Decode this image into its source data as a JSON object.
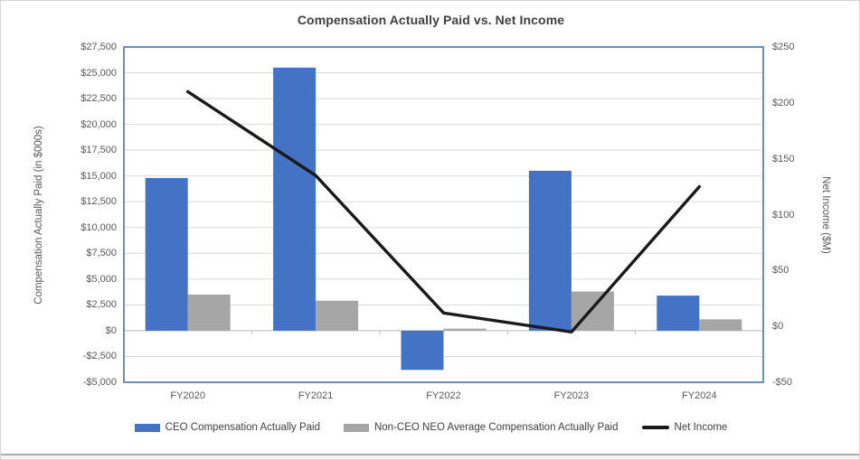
{
  "title": "Compensation Actually Paid vs. Net Income",
  "chart_data": {
    "type": "bar",
    "subtype": "combo-bar-line-dual-axis",
    "title": "Compensation Actually Paid vs. Net Income",
    "categories": [
      "FY2020",
      "FY2021",
      "FY2022",
      "FY2023",
      "FY2024"
    ],
    "series": [
      {
        "name": "CEO Compensation Actually Paid",
        "type": "bar",
        "axis": "left",
        "color": "#4472C4",
        "values": [
          14800,
          25500,
          -3800,
          15500,
          3400
        ]
      },
      {
        "name": "Non-CEO NEO Average Compensation Actually Paid",
        "type": "bar",
        "axis": "left",
        "color": "#A6A6A6",
        "values": [
          3500,
          2900,
          200,
          3800,
          1100
        ]
      },
      {
        "name": "Net Income",
        "type": "line",
        "axis": "right",
        "color": "#1A1A1A",
        "values": [
          210,
          135,
          12,
          -5,
          125
        ]
      }
    ],
    "left_axis": {
      "label": "Compensation Actually Paid (in $000s)",
      "min": -5000,
      "max": 27500,
      "step": 2500,
      "tick_labels": [
        "$27,500",
        "$25,000",
        "$22,500",
        "$20,000",
        "$17,500",
        "$15,000",
        "$12,500",
        "$10,000",
        "$7,500",
        "$5,000",
        "$2,500",
        "$0",
        "-$2,500",
        "-$5,000"
      ]
    },
    "right_axis": {
      "label": "Net Income ($M)",
      "min": -50,
      "max": 250,
      "step": 50,
      "tick_labels": [
        "$250",
        "$200",
        "$150",
        "$100",
        "$50",
        "$0",
        "-$50"
      ]
    },
    "grid": true,
    "legend_position": "bottom",
    "colors": {
      "gridline": "#D9D9D9",
      "zero_axis": "#BFBFBF",
      "plot_border": "#6E8CC8",
      "title_text": "#404040",
      "axis_text": "#595959"
    }
  }
}
